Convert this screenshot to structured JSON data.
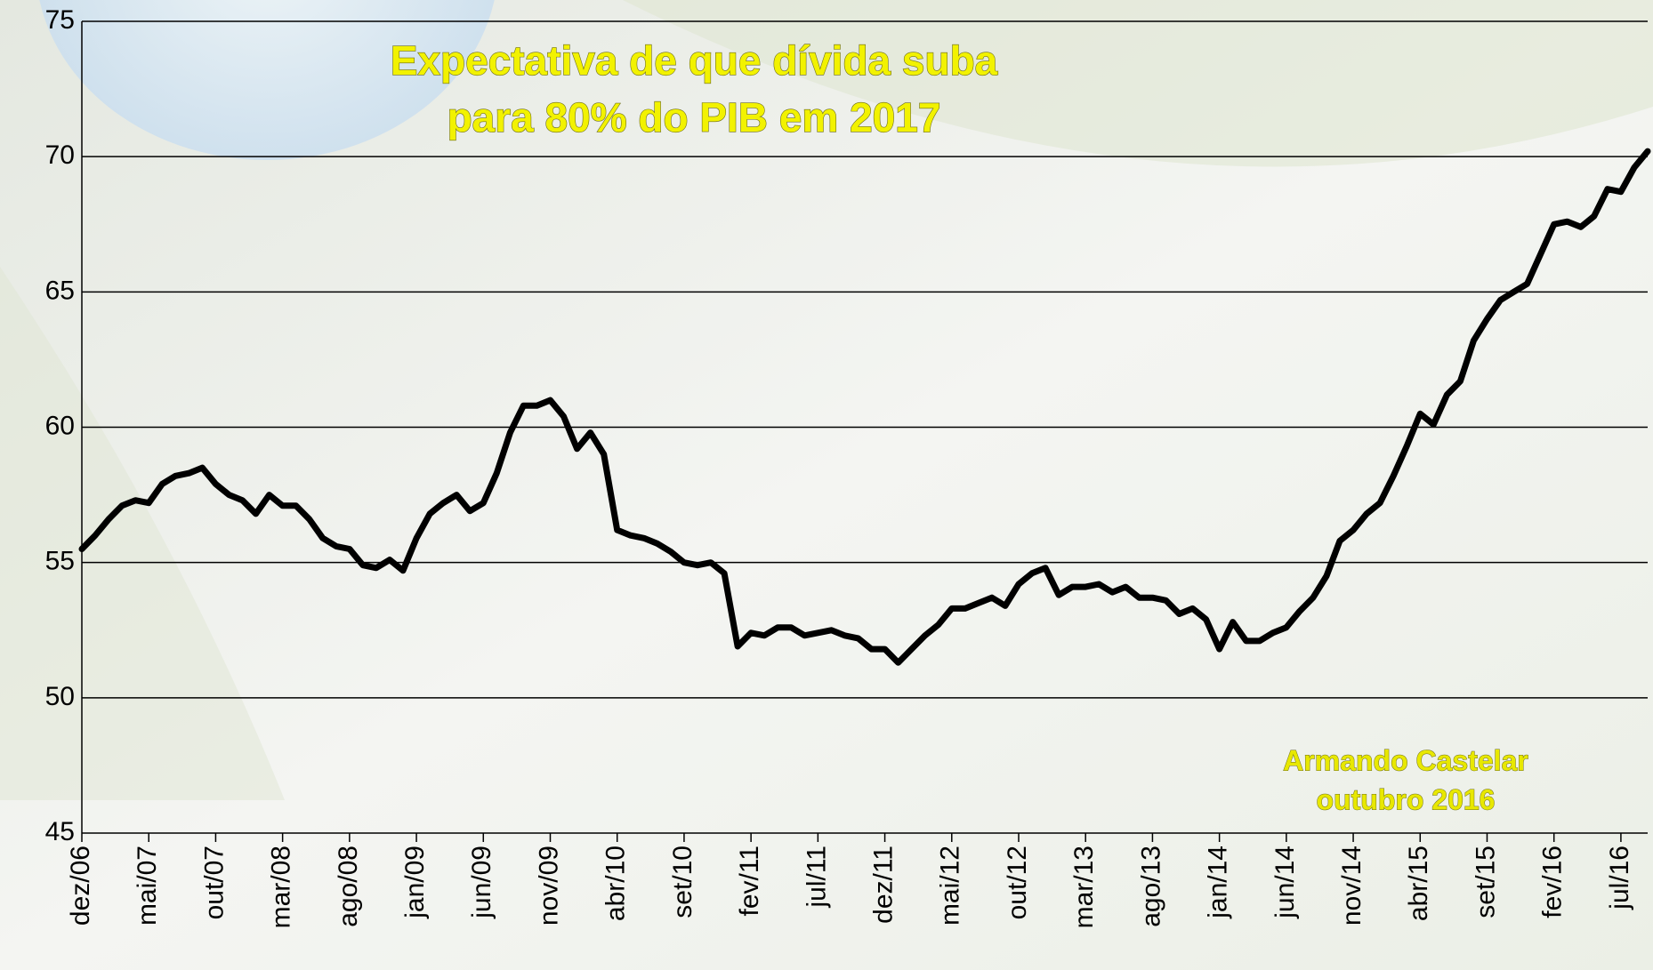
{
  "chart_data": {
    "type": "line",
    "title": [
      "Expectativa de que dívida suba",
      "para 80% do PIB em 2017"
    ],
    "annotation": [
      "Armando Castelar",
      "outubro 2016"
    ],
    "categories": [
      "dez/06",
      null,
      null,
      null,
      null,
      "mai/07",
      null,
      null,
      null,
      null,
      "out/07",
      null,
      null,
      null,
      null,
      "mar/08",
      null,
      null,
      null,
      null,
      "ago/08",
      null,
      null,
      null,
      null,
      "jan/09",
      null,
      null,
      null,
      null,
      "jun/09",
      null,
      null,
      null,
      null,
      "nov/09",
      null,
      null,
      null,
      null,
      "abr/10",
      null,
      null,
      null,
      null,
      "set/10",
      null,
      null,
      null,
      null,
      "fev/11",
      null,
      null,
      null,
      null,
      "jul/11",
      null,
      null,
      null,
      null,
      "dez/11",
      null,
      null,
      null,
      null,
      "mai/12",
      null,
      null,
      null,
      null,
      "out/12",
      null,
      null,
      null,
      null,
      "mar/13",
      null,
      null,
      null,
      null,
      "ago/13",
      null,
      null,
      null,
      null,
      "jan/14",
      null,
      null,
      null,
      null,
      "jun/14",
      null,
      null,
      null,
      null,
      "nov/14",
      null,
      null,
      null,
      null,
      "abr/15",
      null,
      null,
      null,
      null,
      "set/15",
      null,
      null,
      null,
      null,
      "fev/16",
      null,
      null,
      null,
      null,
      "jul/16",
      null,
      null
    ],
    "values": [
      55.5,
      56.0,
      56.6,
      57.1,
      57.3,
      57.2,
      57.9,
      58.2,
      58.3,
      58.5,
      57.9,
      57.5,
      57.3,
      56.8,
      57.5,
      57.1,
      57.1,
      56.6,
      55.9,
      55.6,
      55.5,
      54.9,
      54.8,
      55.1,
      54.7,
      55.9,
      56.8,
      57.2,
      57.5,
      56.9,
      57.2,
      58.3,
      59.8,
      60.8,
      60.8,
      61.0,
      60.4,
      59.2,
      59.8,
      59.0,
      56.2,
      56.0,
      55.9,
      55.7,
      55.4,
      55.0,
      54.9,
      55.0,
      54.6,
      51.9,
      52.4,
      52.3,
      52.6,
      52.6,
      52.3,
      52.4,
      52.5,
      52.3,
      52.2,
      51.8,
      51.8,
      51.3,
      51.8,
      52.3,
      52.7,
      53.3,
      53.3,
      53.5,
      53.7,
      53.4,
      54.2,
      54.6,
      54.8,
      53.8,
      54.1,
      54.1,
      54.2,
      53.9,
      54.1,
      53.7,
      53.7,
      53.6,
      53.1,
      53.3,
      52.9,
      51.8,
      52.8,
      52.1,
      52.1,
      52.4,
      52.6,
      53.2,
      53.7,
      54.5,
      55.8,
      56.2,
      56.8,
      57.2,
      58.2,
      59.3,
      60.5,
      60.1,
      61.2,
      61.7,
      63.2,
      64.0,
      64.7,
      65.0,
      65.3,
      66.4,
      67.5,
      67.6,
      67.4,
      67.8,
      68.8,
      68.7,
      69.6,
      70.2
    ],
    "color": "#000000",
    "ylim": [
      45,
      75
    ],
    "yticks": [
      45,
      50,
      55,
      60,
      65,
      70,
      75
    ],
    "grid": true
  }
}
